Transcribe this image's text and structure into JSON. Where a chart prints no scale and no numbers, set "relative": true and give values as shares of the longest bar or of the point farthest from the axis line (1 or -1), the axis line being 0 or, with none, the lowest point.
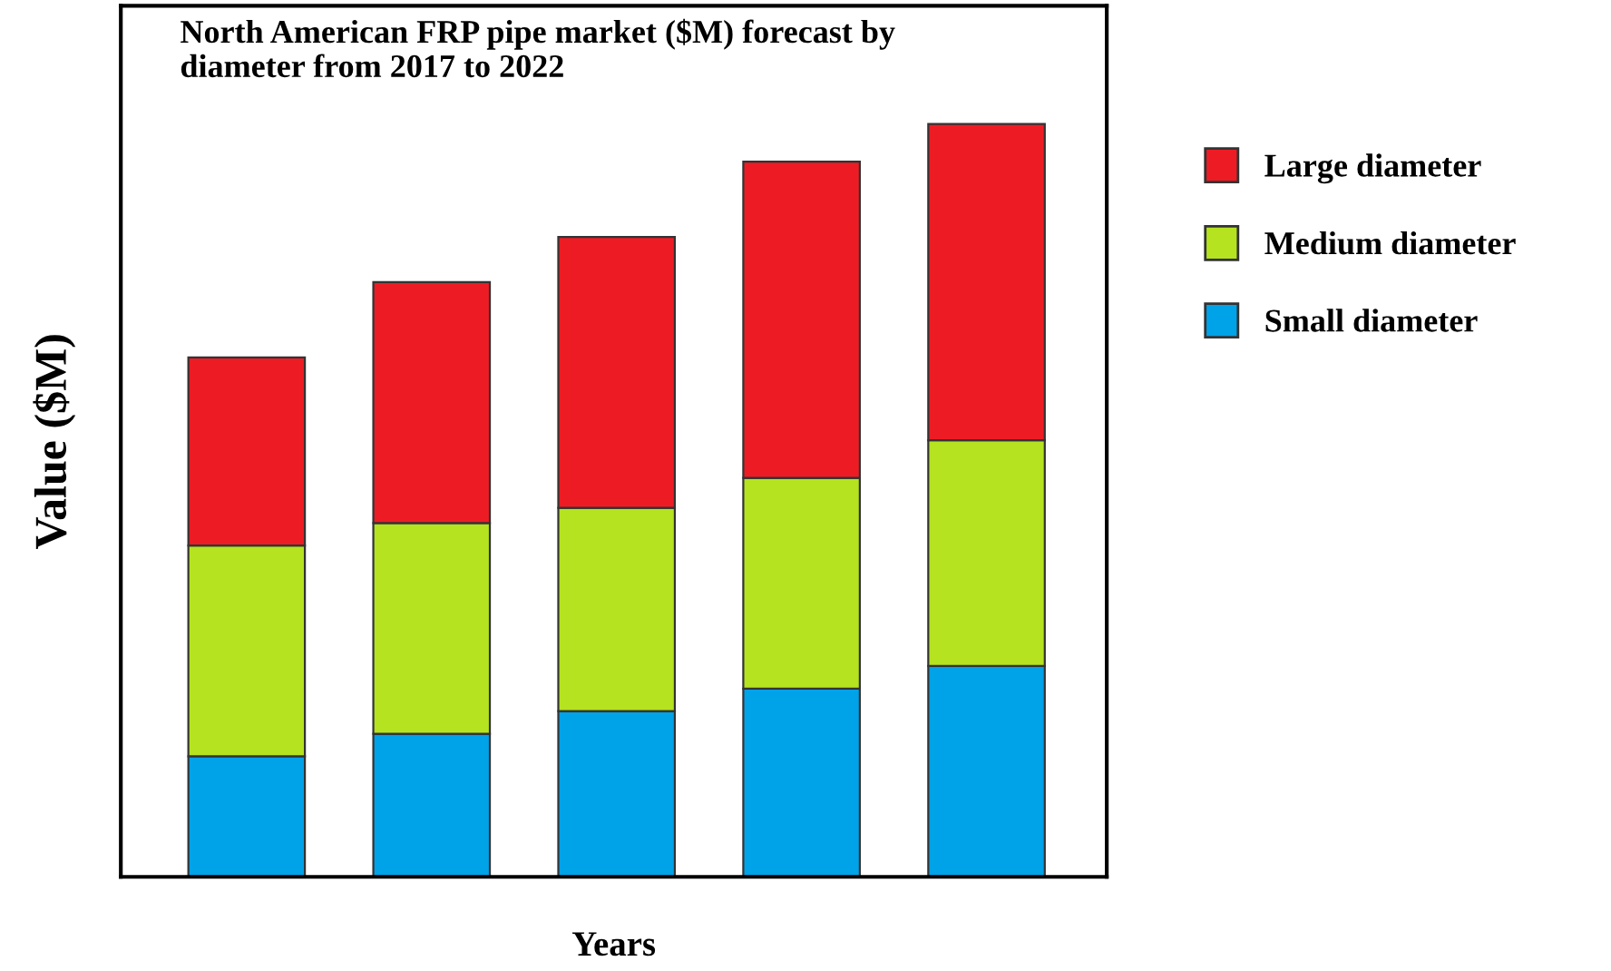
{
  "chart_data": {
    "type": "bar",
    "title": "North American FRP pipe market ($M) forecast by\ndiameter from 2017 to 2022",
    "xlabel": "Years",
    "ylabel": "Value ($M)",
    "categories": [
      null,
      null,
      null,
      null,
      null
    ],
    "stacked": true,
    "relative": true,
    "legend": "right",
    "grid": false,
    "series": [
      {
        "name": "Small diameter",
        "color": "#00a2e8",
        "values": [
          0.16,
          0.19,
          0.22,
          0.25,
          0.28
        ]
      },
      {
        "name": "Medium diameter",
        "color": "#b5e31f",
        "values": [
          0.28,
          0.28,
          0.27,
          0.28,
          0.3
        ]
      },
      {
        "name": "Large diameter",
        "color": "#ed1c24",
        "values": [
          0.25,
          0.32,
          0.36,
          0.42,
          0.42
        ]
      }
    ]
  }
}
